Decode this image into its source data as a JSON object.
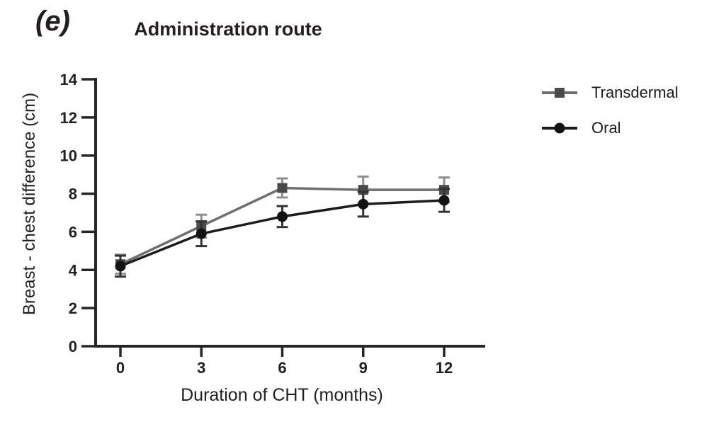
{
  "panel_label": "(e)",
  "chart_data": {
    "type": "line",
    "title": "Administration route",
    "xlabel": "Duration of CHT (months)",
    "ylabel": "Breast - chest difference (cm)",
    "x": [
      0,
      3,
      6,
      9,
      12
    ],
    "xticks": [
      0,
      3,
      6,
      9,
      12
    ],
    "yticks": [
      0,
      2,
      4,
      6,
      8,
      10,
      12,
      14
    ],
    "ylim": [
      0,
      14
    ],
    "xlim": [
      -1,
      13.5
    ],
    "grid": false,
    "legend_position": "right",
    "axis_color": "#262626",
    "tick_label_color": "#231f20",
    "series": [
      {
        "name": "Transdermal",
        "marker": "square",
        "line_color": "#6e6e6e",
        "marker_color": "#4a4a4a",
        "error_color": "#8f8f8f",
        "values": [
          4.3,
          6.3,
          8.3,
          8.2,
          8.2
        ],
        "errors": [
          0.5,
          0.6,
          0.5,
          0.7,
          0.65
        ]
      },
      {
        "name": "Oral",
        "marker": "circle",
        "line_color": "#1c1c1c",
        "marker_color": "#121212",
        "error_color": "#333333",
        "values": [
          4.2,
          5.9,
          6.8,
          7.45,
          7.65
        ],
        "errors": [
          0.55,
          0.65,
          0.55,
          0.65,
          0.6
        ]
      }
    ]
  }
}
